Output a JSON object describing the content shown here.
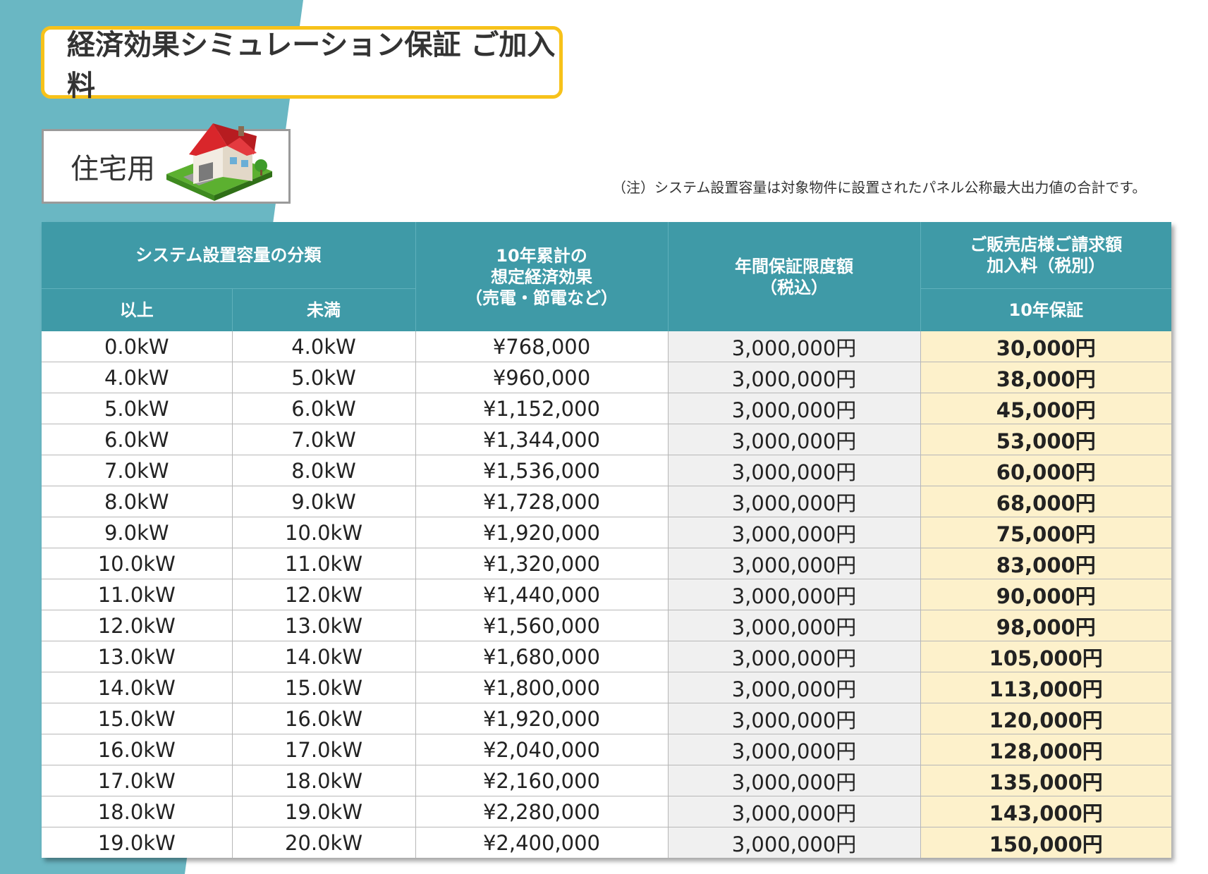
{
  "title": "経済効果シミュレーション保証 ご加入料",
  "category": "住宅用",
  "note": "（注）システム設置容量は対象物件に設置されたパネル公称最大出力値の合計です。",
  "colors": {
    "header_bg": "#3f9aa7",
    "band": "#6ab7c3",
    "title_border": "#f7c21a",
    "fee_bg": "#fdf1cb",
    "limit_bg": "#f0f0f0"
  },
  "table": {
    "header": {
      "capacity_group": "システム設置容量の分類",
      "min": "以上",
      "max": "未満",
      "effect_line1": "10年累計の",
      "effect_line2": "想定経済効果",
      "effect_line3": "（売電・節電など）",
      "limit_line1": "年間保証限度額",
      "limit_line2": "（税込）",
      "fee_line1": "ご販売店様ご請求額",
      "fee_line2": "加入料（税別）",
      "fee_sub": "10年保証"
    },
    "rows": [
      {
        "min": "0.0kW",
        "max": "4.0kW",
        "effect": "¥768,000",
        "limit": "3,000,000円",
        "fee": "30,000円"
      },
      {
        "min": "4.0kW",
        "max": "5.0kW",
        "effect": "¥960,000",
        "limit": "3,000,000円",
        "fee": "38,000円"
      },
      {
        "min": "5.0kW",
        "max": "6.0kW",
        "effect": "¥1,152,000",
        "limit": "3,000,000円",
        "fee": "45,000円"
      },
      {
        "min": "6.0kW",
        "max": "7.0kW",
        "effect": "¥1,344,000",
        "limit": "3,000,000円",
        "fee": "53,000円"
      },
      {
        "min": "7.0kW",
        "max": "8.0kW",
        "effect": "¥1,536,000",
        "limit": "3,000,000円",
        "fee": "60,000円"
      },
      {
        "min": "8.0kW",
        "max": "9.0kW",
        "effect": "¥1,728,000",
        "limit": "3,000,000円",
        "fee": "68,000円"
      },
      {
        "min": "9.0kW",
        "max": "10.0kW",
        "effect": "¥1,920,000",
        "limit": "3,000,000円",
        "fee": "75,000円"
      },
      {
        "min": "10.0kW",
        "max": "11.0kW",
        "effect": "¥1,320,000",
        "limit": "3,000,000円",
        "fee": "83,000円"
      },
      {
        "min": "11.0kW",
        "max": "12.0kW",
        "effect": "¥1,440,000",
        "limit": "3,000,000円",
        "fee": "90,000円"
      },
      {
        "min": "12.0kW",
        "max": "13.0kW",
        "effect": "¥1,560,000",
        "limit": "3,000,000円",
        "fee": "98,000円"
      },
      {
        "min": "13.0kW",
        "max": "14.0kW",
        "effect": "¥1,680,000",
        "limit": "3,000,000円",
        "fee": "105,000円"
      },
      {
        "min": "14.0kW",
        "max": "15.0kW",
        "effect": "¥1,800,000",
        "limit": "3,000,000円",
        "fee": "113,000円"
      },
      {
        "min": "15.0kW",
        "max": "16.0kW",
        "effect": "¥1,920,000",
        "limit": "3,000,000円",
        "fee": "120,000円"
      },
      {
        "min": "16.0kW",
        "max": "17.0kW",
        "effect": "¥2,040,000",
        "limit": "3,000,000円",
        "fee": "128,000円"
      },
      {
        "min": "17.0kW",
        "max": "18.0kW",
        "effect": "¥2,160,000",
        "limit": "3,000,000円",
        "fee": "135,000円"
      },
      {
        "min": "18.0kW",
        "max": "19.0kW",
        "effect": "¥2,280,000",
        "limit": "3,000,000円",
        "fee": "143,000円"
      },
      {
        "min": "19.0kW",
        "max": "20.0kW",
        "effect": "¥2,400,000",
        "limit": "3,000,000円",
        "fee": "150,000円"
      }
    ]
  }
}
